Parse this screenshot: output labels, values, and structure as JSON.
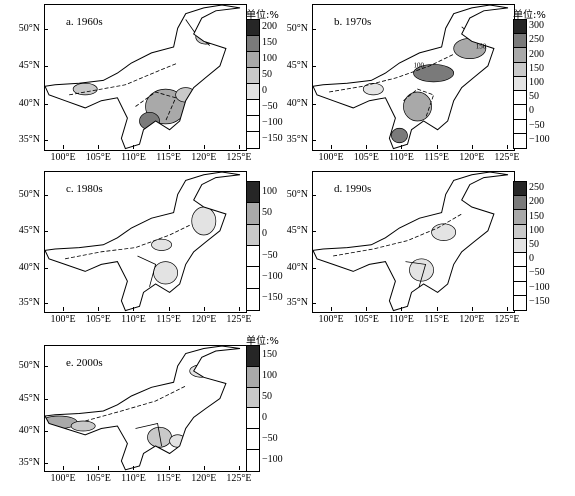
{
  "unit_label": "单位:%",
  "lat_ticks": [
    "50°N",
    "45°N",
    "40°N",
    "35°N"
  ],
  "lon_ticks": [
    "100°E",
    "105°E",
    "110°E",
    "115°E",
    "120°E",
    "125°E"
  ],
  "colors": {
    "level1": "#ffffff",
    "level2": "#e3e3e3",
    "level3": "#c9c9c9",
    "level4": "#a9a9a9",
    "level5": "#7a7a7a",
    "level6": "#262626"
  },
  "panels": [
    {
      "label": "a. 1960s",
      "colorbar_ticks": [
        "200",
        "150",
        "100",
        "50",
        "0",
        "−50",
        "−100",
        "−150"
      ]
    },
    {
      "label": "b. 1970s",
      "colorbar_ticks": [
        "300",
        "250",
        "200",
        "150",
        "100",
        "50",
        "0",
        "−50",
        "−100"
      ],
      "contour_labels": [
        "100",
        "150"
      ]
    },
    {
      "label": "c. 1980s",
      "colorbar_ticks": [
        "100",
        "50",
        "0",
        "−50",
        "−100",
        "−150"
      ]
    },
    {
      "label": "d. 1990s",
      "colorbar_ticks": [
        "250",
        "200",
        "150",
        "100",
        "50",
        "0",
        "−50",
        "−100",
        "−150"
      ]
    },
    {
      "label": "e. 2000s",
      "colorbar_ticks": [
        "150",
        "100",
        "50",
        "0",
        "−50",
        "−100"
      ]
    }
  ]
}
